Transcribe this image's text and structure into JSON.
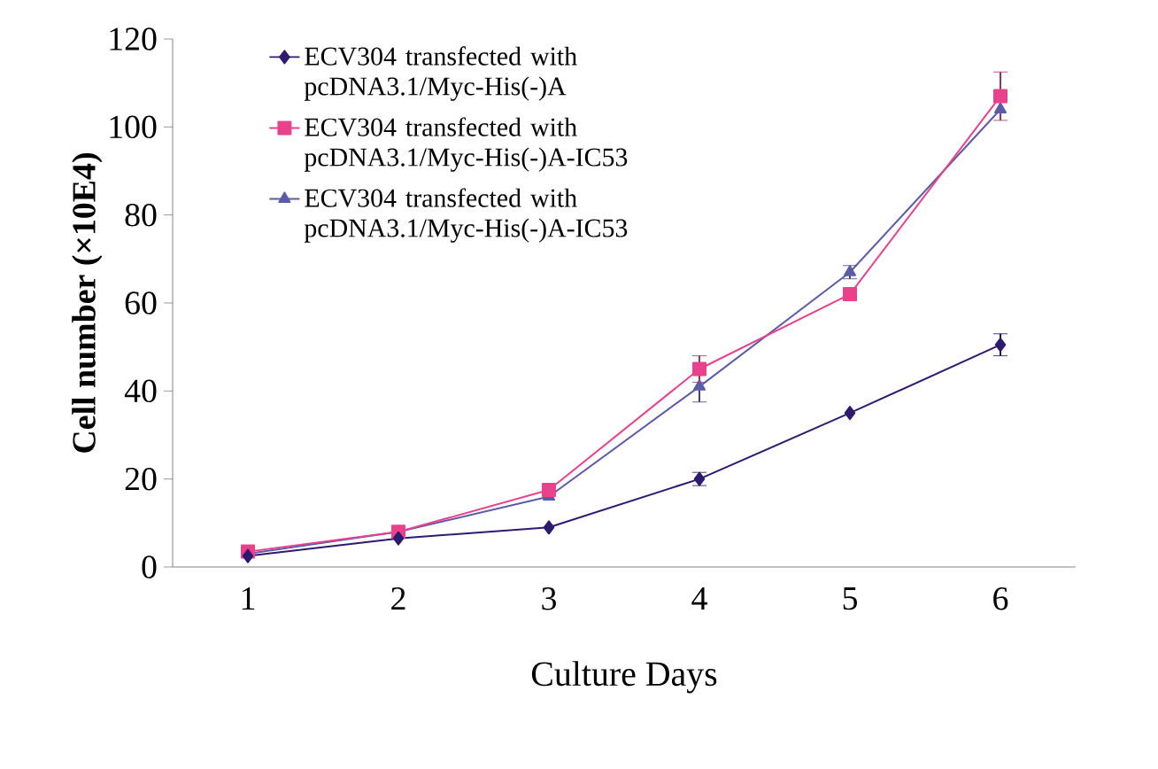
{
  "chart_data": {
    "type": "line",
    "xlabel": "Culture Days",
    "ylabel": "Cell number (×10E4)",
    "categories": [
      "1",
      "2",
      "3",
      "4",
      "5",
      "6"
    ],
    "ylim": [
      0,
      120
    ],
    "yticks": [
      0,
      20,
      40,
      60,
      80,
      100,
      120
    ],
    "grid": false,
    "legend": "top left",
    "series": [
      {
        "name": "ECV304 transfected with pcDNA3.1/Myc-His(-)A",
        "color": "#2e1a6e",
        "marker": "diamond",
        "values": [
          2.5,
          6.5,
          9,
          20,
          35,
          50.5
        ],
        "errors": [
          null,
          null,
          null,
          1.5,
          null,
          2.5
        ]
      },
      {
        "name": "ECV304 transfected with pcDNA3.1/Myc-His(-)A-IC53",
        "color": "#e8428c",
        "marker": "square",
        "values": [
          3.5,
          8,
          17.5,
          45,
          62,
          107
        ],
        "errors": [
          null,
          null,
          null,
          3,
          null,
          5.5
        ]
      },
      {
        "name": "ECV304 transfected with pcDNA3.1/Myc-His(-)A-IC53",
        "color": "#5b5ba8",
        "marker": "triangle",
        "values": [
          3,
          8,
          16,
          41,
          67,
          104
        ],
        "errors": [
          null,
          null,
          null,
          3.5,
          1.5,
          null
        ]
      }
    ]
  }
}
